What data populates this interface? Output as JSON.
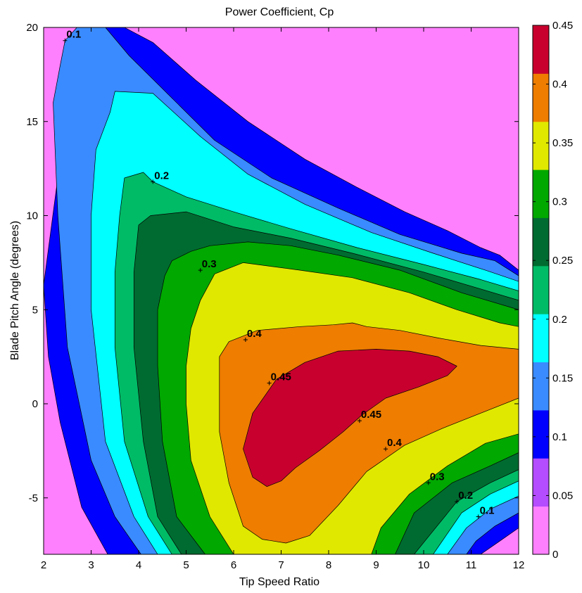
{
  "chart_data": {
    "type": "contourf",
    "title": "Power Coefficient, Cp",
    "xlabel": "Tip Speed Ratio",
    "ylabel": "Blade Pitch Angle (degrees)",
    "xlim": [
      2,
      12
    ],
    "ylim": [
      -8,
      20
    ],
    "xticks": [
      "2",
      "3",
      "4",
      "5",
      "6",
      "7",
      "8",
      "9",
      "10",
      "11",
      "12"
    ],
    "yticks": [
      "-5",
      "0",
      "5",
      "10",
      "15",
      "20"
    ],
    "contour_levels": [
      0,
      0.05,
      0.1,
      0.15,
      0.2,
      0.25,
      0.3,
      0.35,
      0.4,
      0.45
    ],
    "level_colors": [
      "#ff80ff",
      "#b44cff",
      "#0000ff",
      "#3a8bff",
      "#00ffff",
      "#00bb66",
      "#006b30",
      "#00a800",
      "#e0e800",
      "#ee7d00",
      "#c8002d"
    ],
    "colorbar": {
      "range": [
        0,
        0.45
      ],
      "ticks": [
        "0",
        "0.05",
        "0.1",
        "0.15",
        "0.2",
        "0.25",
        "0.3",
        "0.35",
        "0.4",
        "0.45"
      ]
    },
    "contour_labels": [
      {
        "text": "0.1",
        "x": 2.45,
        "y": 19.3
      },
      {
        "text": "0.2",
        "x": 4.3,
        "y": 11.8
      },
      {
        "text": "0.3",
        "x": 5.3,
        "y": 7.1
      },
      {
        "text": "0.4",
        "x": 6.25,
        "y": 3.4
      },
      {
        "text": "0.45",
        "x": 6.75,
        "y": 1.1
      },
      {
        "text": "0.45",
        "x": 8.65,
        "y": -0.9
      },
      {
        "text": "0.4",
        "x": 9.2,
        "y": -2.4
      },
      {
        "text": "0.3",
        "x": 10.1,
        "y": -4.2
      },
      {
        "text": "0.2",
        "x": 10.7,
        "y": -5.2
      },
      {
        "text": "0.1",
        "x": 11.15,
        "y": -6.0
      }
    ],
    "regions": [
      {
        "level": 0.05,
        "points": [
          [
            2,
            6.3
          ],
          [
            2.35,
            13
          ],
          [
            2.6,
            17.5
          ],
          [
            2.8,
            19.6
          ],
          [
            3.1,
            20
          ],
          [
            3.7,
            20
          ],
          [
            4.3,
            19.2
          ],
          [
            5.2,
            17.2
          ],
          [
            6.3,
            15
          ],
          [
            7.5,
            13
          ],
          [
            8.6,
            11.5
          ],
          [
            9.6,
            10.2
          ],
          [
            10.5,
            9.2
          ],
          [
            11.2,
            8.3
          ],
          [
            11.6,
            7.9
          ],
          [
            12,
            7.1
          ],
          [
            12,
            -6.6
          ],
          [
            11.6,
            -7.3
          ],
          [
            11.2,
            -8
          ],
          [
            3.35,
            -8
          ],
          [
            2.8,
            -5.5
          ],
          [
            2.35,
            -1
          ],
          [
            2.1,
            2.5
          ]
        ]
      },
      {
        "level": 0.1,
        "points": [
          [
            2.2,
            16
          ],
          [
            2.35,
            18
          ],
          [
            2.45,
            19.3
          ],
          [
            2.7,
            20
          ],
          [
            3.3,
            20
          ],
          [
            3.8,
            18.5
          ],
          [
            4.6,
            16.5
          ],
          [
            5.6,
            14
          ],
          [
            6.8,
            12
          ],
          [
            8.2,
            10.4
          ],
          [
            9.5,
            9
          ],
          [
            10.8,
            8
          ],
          [
            11.5,
            7.6
          ],
          [
            12,
            6.8
          ],
          [
            12,
            -5.8
          ],
          [
            11.5,
            -6.5
          ],
          [
            11.1,
            -7.3
          ],
          [
            10.9,
            -8
          ],
          [
            4.05,
            -8
          ],
          [
            3.5,
            -6
          ],
          [
            3,
            -3
          ],
          [
            2.5,
            3
          ],
          [
            2.3,
            10
          ]
        ]
      },
      {
        "level": 0.15,
        "points": [
          [
            3.1,
            13.5
          ],
          [
            3.4,
            15.5
          ],
          [
            3.5,
            16.6
          ],
          [
            4.3,
            16.5
          ],
          [
            5.3,
            14.2
          ],
          [
            6.3,
            12.2
          ],
          [
            7.5,
            10.6
          ],
          [
            8.9,
            9.1
          ],
          [
            10.2,
            8
          ],
          [
            11.3,
            7.1
          ],
          [
            12,
            6.5
          ],
          [
            12,
            -4.9
          ],
          [
            11.4,
            -5.6
          ],
          [
            10.9,
            -6.6
          ],
          [
            10.5,
            -8
          ],
          [
            4.4,
            -8
          ],
          [
            3.9,
            -6
          ],
          [
            3.3,
            -2
          ],
          [
            3,
            5
          ],
          [
            3,
            10
          ]
        ]
      },
      {
        "level": 0.2,
        "points": [
          [
            3.6,
            10
          ],
          [
            3.7,
            12
          ],
          [
            4.1,
            12.3
          ],
          [
            4.3,
            11.8
          ],
          [
            5,
            11
          ],
          [
            6,
            10.2
          ],
          [
            7.2,
            9.3
          ],
          [
            8.6,
            8.3
          ],
          [
            10,
            7.4
          ],
          [
            11.2,
            6.6
          ],
          [
            12,
            6
          ],
          [
            12,
            -4.1
          ],
          [
            11.4,
            -4.8
          ],
          [
            10.8,
            -5.8
          ],
          [
            10.2,
            -8
          ],
          [
            4.7,
            -8
          ],
          [
            4.2,
            -6
          ],
          [
            3.7,
            -2
          ],
          [
            3.5,
            3
          ],
          [
            3.5,
            7
          ]
        ]
      },
      {
        "level": 0.25,
        "points": [
          [
            4,
            9.5
          ],
          [
            4.25,
            10
          ],
          [
            5,
            10.2
          ],
          [
            6,
            9.4
          ],
          [
            7.2,
            8.8
          ],
          [
            8.5,
            8
          ],
          [
            10,
            7
          ],
          [
            11.2,
            6.1
          ],
          [
            12,
            5.5
          ],
          [
            12,
            -3.5
          ],
          [
            11.4,
            -4.2
          ],
          [
            10.7,
            -5.2
          ],
          [
            9.8,
            -8
          ],
          [
            4.9,
            -8
          ],
          [
            4.4,
            -6
          ],
          [
            4.1,
            -2
          ],
          [
            3.9,
            3
          ],
          [
            3.9,
            7
          ]
        ]
      },
      {
        "level": 0.3,
        "points": [
          [
            4.4,
            5
          ],
          [
            4.55,
            6.8
          ],
          [
            4.7,
            7.6
          ],
          [
            5.1,
            8.1
          ],
          [
            5.5,
            8.4
          ],
          [
            6.3,
            8.6
          ],
          [
            7.2,
            8.4
          ],
          [
            8.2,
            7.9
          ],
          [
            9.5,
            7.1
          ],
          [
            10.8,
            5.9
          ],
          [
            12,
            5
          ],
          [
            12,
            -2.6
          ],
          [
            11.4,
            -3.3
          ],
          [
            10.6,
            -4.2
          ],
          [
            9.8,
            -5.8
          ],
          [
            9.4,
            -8
          ],
          [
            5.4,
            -8
          ],
          [
            4.8,
            -6
          ],
          [
            4.5,
            -2
          ],
          [
            4.4,
            2
          ]
        ]
      },
      {
        "level": 0.35,
        "points": [
          [
            5,
            2
          ],
          [
            5.1,
            4
          ],
          [
            5.3,
            5.5
          ],
          [
            5.6,
            6.9
          ],
          [
            6.2,
            7.5
          ],
          [
            7.4,
            7.1
          ],
          [
            8.5,
            6.7
          ],
          [
            9.7,
            5.9
          ],
          [
            10.7,
            5
          ],
          [
            11.6,
            4.3
          ],
          [
            12,
            4.1
          ],
          [
            12,
            -1.6
          ],
          [
            11.3,
            -2.1
          ],
          [
            10.5,
            -3.3
          ],
          [
            9.7,
            -4.8
          ],
          [
            9.1,
            -6.6
          ],
          [
            8.9,
            -8
          ],
          [
            6,
            -8
          ],
          [
            5.5,
            -6
          ],
          [
            5.1,
            -3
          ],
          [
            5,
            0
          ]
        ]
      },
      {
        "level": 0.4,
        "points": [
          [
            5.7,
            1
          ],
          [
            5.7,
            2.5
          ],
          [
            5.9,
            3.3
          ],
          [
            6.5,
            3.9
          ],
          [
            7.4,
            4.1
          ],
          [
            8.1,
            4.2
          ],
          [
            8.5,
            4.3
          ],
          [
            8.8,
            4.1
          ],
          [
            9.5,
            3.9
          ],
          [
            10.3,
            3.5
          ],
          [
            11.2,
            3.1
          ],
          [
            12,
            2.9
          ],
          [
            12,
            0.3
          ],
          [
            11.3,
            -0.4
          ],
          [
            10.4,
            -1.3
          ],
          [
            9.6,
            -2.2
          ],
          [
            8.8,
            -3.6
          ],
          [
            8.2,
            -5.4
          ],
          [
            7.6,
            -7
          ],
          [
            7.1,
            -7.4
          ],
          [
            6.6,
            -7.2
          ],
          [
            6.2,
            -6.5
          ],
          [
            5.9,
            -4.2
          ],
          [
            5.7,
            -1.5
          ]
        ]
      },
      {
        "level": 0.45,
        "points": [
          [
            6.2,
            -2.4
          ],
          [
            6.4,
            -0.5
          ],
          [
            6.9,
            1.3
          ],
          [
            7.5,
            2.2
          ],
          [
            8.2,
            2.8
          ],
          [
            9,
            2.9
          ],
          [
            9.7,
            2.8
          ],
          [
            10.3,
            2.5
          ],
          [
            10.7,
            2
          ],
          [
            10.5,
            1.5
          ],
          [
            9.9,
            0.9
          ],
          [
            9.2,
            0.3
          ],
          [
            8.7,
            -0.6
          ],
          [
            8.3,
            -1.5
          ],
          [
            7.8,
            -2.5
          ],
          [
            7.3,
            -3.4
          ],
          [
            7,
            -4.1
          ],
          [
            6.7,
            -4.4
          ],
          [
            6.4,
            -3.9
          ]
        ]
      }
    ]
  }
}
